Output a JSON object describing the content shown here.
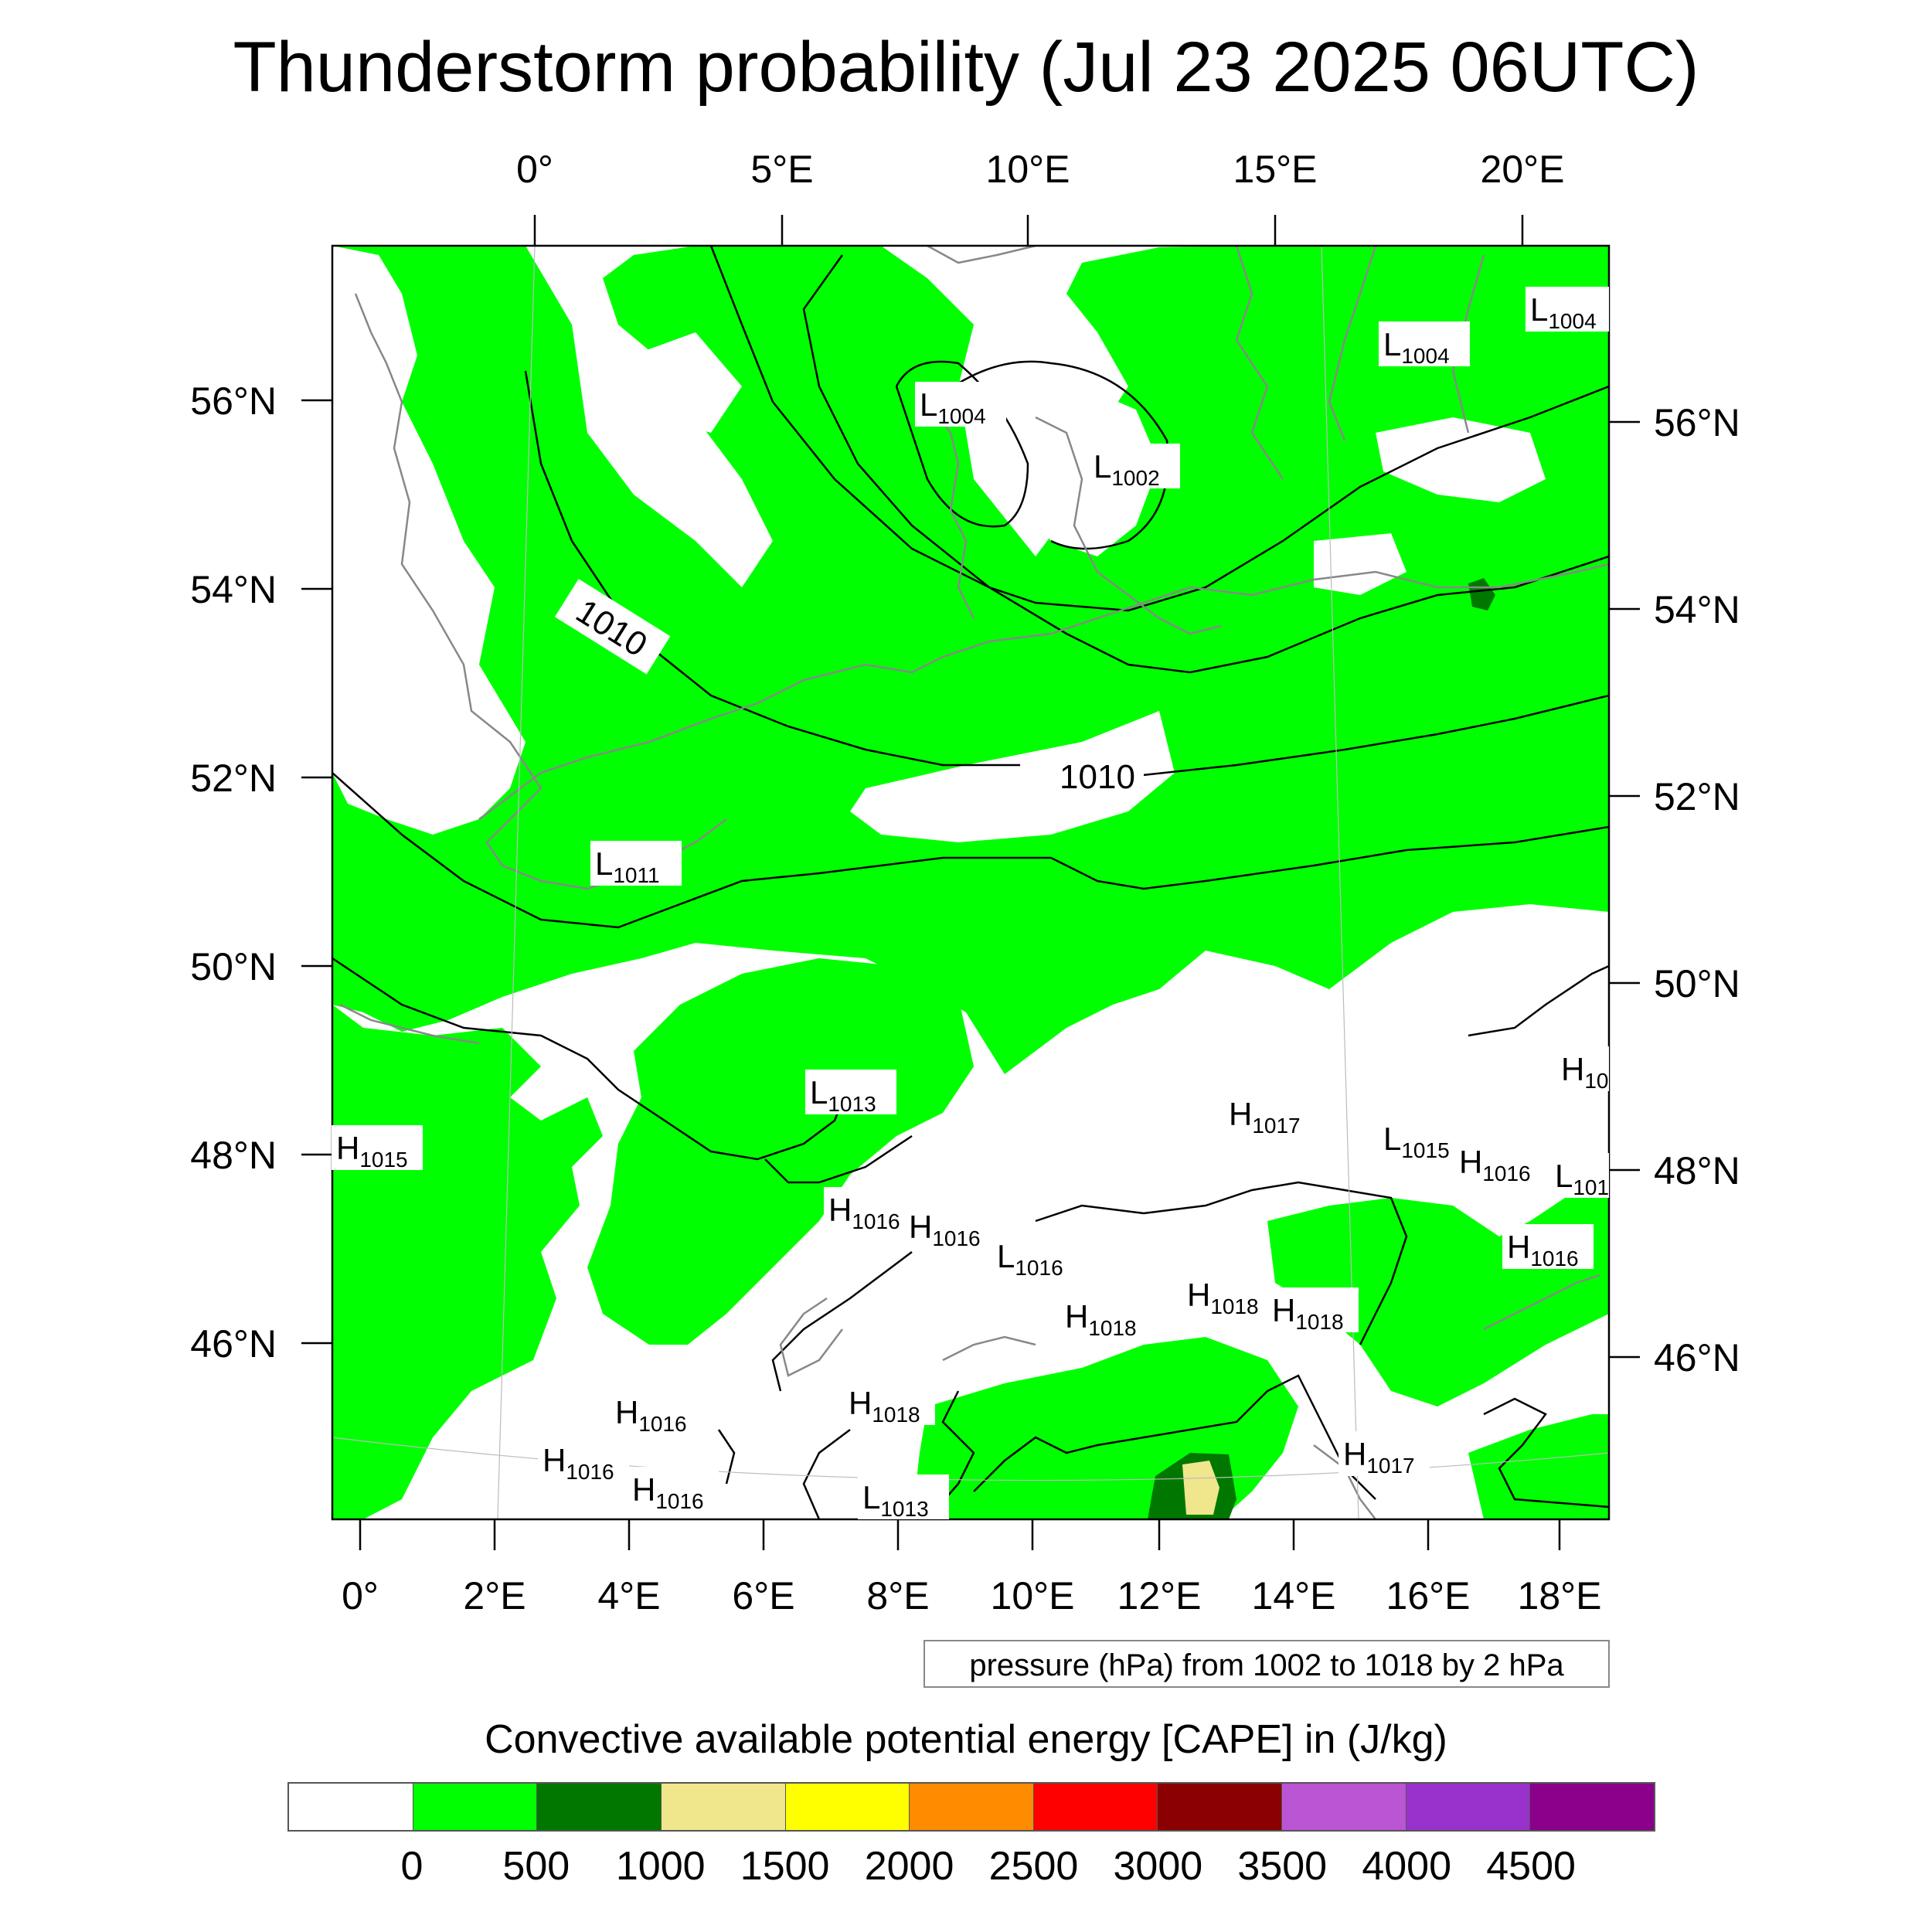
{
  "title": "Thunderstorm probability (Jul 23 2025 06UTC)",
  "top_lon_labels": [
    "0°",
    "5°E",
    "10°E",
    "15°E",
    "20°E"
  ],
  "bottom_lon_labels": [
    "0°",
    "2°E",
    "4°E",
    "6°E",
    "8°E",
    "10°E",
    "12°E",
    "14°E",
    "16°E",
    "18°E"
  ],
  "left_lat_labels": [
    "56°N",
    "54°N",
    "52°N",
    "50°N",
    "48°N",
    "46°N"
  ],
  "right_lat_labels": [
    "56°N",
    "54°N",
    "52°N",
    "50°N",
    "48°N",
    "46°N"
  ],
  "isobar_labels": [
    "1010",
    "1010"
  ],
  "pressure_centers": [
    {
      "type": "L",
      "value": "1004"
    },
    {
      "type": "L",
      "value": "1004"
    },
    {
      "type": "L",
      "value": "1004"
    },
    {
      "type": "L",
      "value": "1002"
    },
    {
      "type": "L",
      "value": "1011"
    },
    {
      "type": "L",
      "value": "1013"
    },
    {
      "type": "H",
      "value": "10"
    },
    {
      "type": "H",
      "value": "1017"
    },
    {
      "type": "H",
      "value": "1015"
    },
    {
      "type": "L",
      "value": "1015"
    },
    {
      "type": "H",
      "value": "1016"
    },
    {
      "type": "L",
      "value": "101"
    },
    {
      "type": "H",
      "value": "1016"
    },
    {
      "type": "H",
      "value": "1016"
    },
    {
      "type": "L",
      "value": "1016"
    },
    {
      "type": "H",
      "value": "1016"
    },
    {
      "type": "H",
      "value": "1018"
    },
    {
      "type": "H",
      "value": "1018"
    },
    {
      "type": "H",
      "value": "1018"
    },
    {
      "type": "H",
      "value": "1018"
    },
    {
      "type": "H",
      "value": "1016"
    },
    {
      "type": "H",
      "value": "1016"
    },
    {
      "type": "H",
      "value": "1016"
    },
    {
      "type": "H",
      "value": "1017"
    },
    {
      "type": "L",
      "value": "1013"
    }
  ],
  "info_box": "pressure (hPa) from 1002 to 1018 by 2 hPa",
  "legend": {
    "title": "Convective available potential energy [CAPE] in (J/kg)",
    "colors": [
      "#ffffff",
      "#00ff00",
      "#007800",
      "#f0e68c",
      "#ffff00",
      "#ff8c00",
      "#ff0000",
      "#8b0000",
      "#ba55d3",
      "#9932cc",
      "#8b008b"
    ],
    "tick_labels": [
      "0",
      "500",
      "1000",
      "1500",
      "2000",
      "2500",
      "3000",
      "3500",
      "4000",
      "4500"
    ]
  }
}
